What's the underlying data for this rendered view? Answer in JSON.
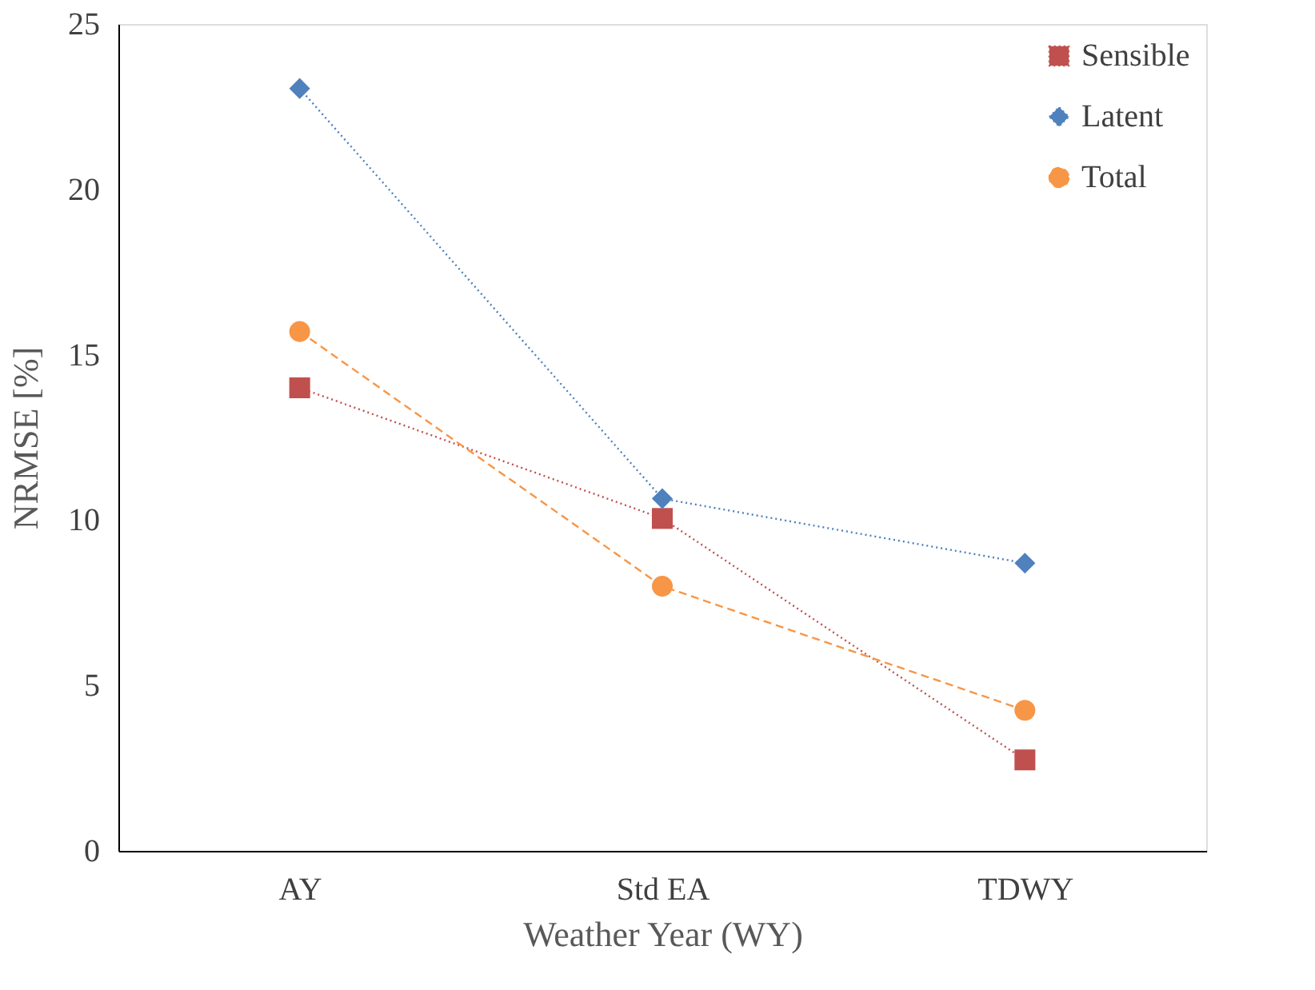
{
  "chart_data": {
    "type": "line",
    "xlabel": "Weather Year (WY)",
    "ylabel": "NRMSE [%]",
    "categories": [
      "AY",
      "Std EA",
      "TDWY"
    ],
    "series": [
      {
        "name": "Sensible",
        "color": "#c0504d",
        "values": [
          14.0,
          10.05,
          2.75
        ],
        "marker": "square",
        "line_style": "dotted"
      },
      {
        "name": "Latent",
        "color": "#4f81bd",
        "values": [
          23.05,
          10.65,
          8.7
        ],
        "marker": "diamond",
        "line_style": "dotted"
      },
      {
        "name": "Total",
        "color": "#f79646",
        "values": [
          15.7,
          8.0,
          4.25
        ],
        "marker": "circle",
        "line_style": "dashed"
      }
    ],
    "ylim": [
      0,
      25
    ],
    "yticks": [
      0,
      5,
      10,
      15,
      20,
      25
    ],
    "grid": false,
    "legend": "top right"
  }
}
